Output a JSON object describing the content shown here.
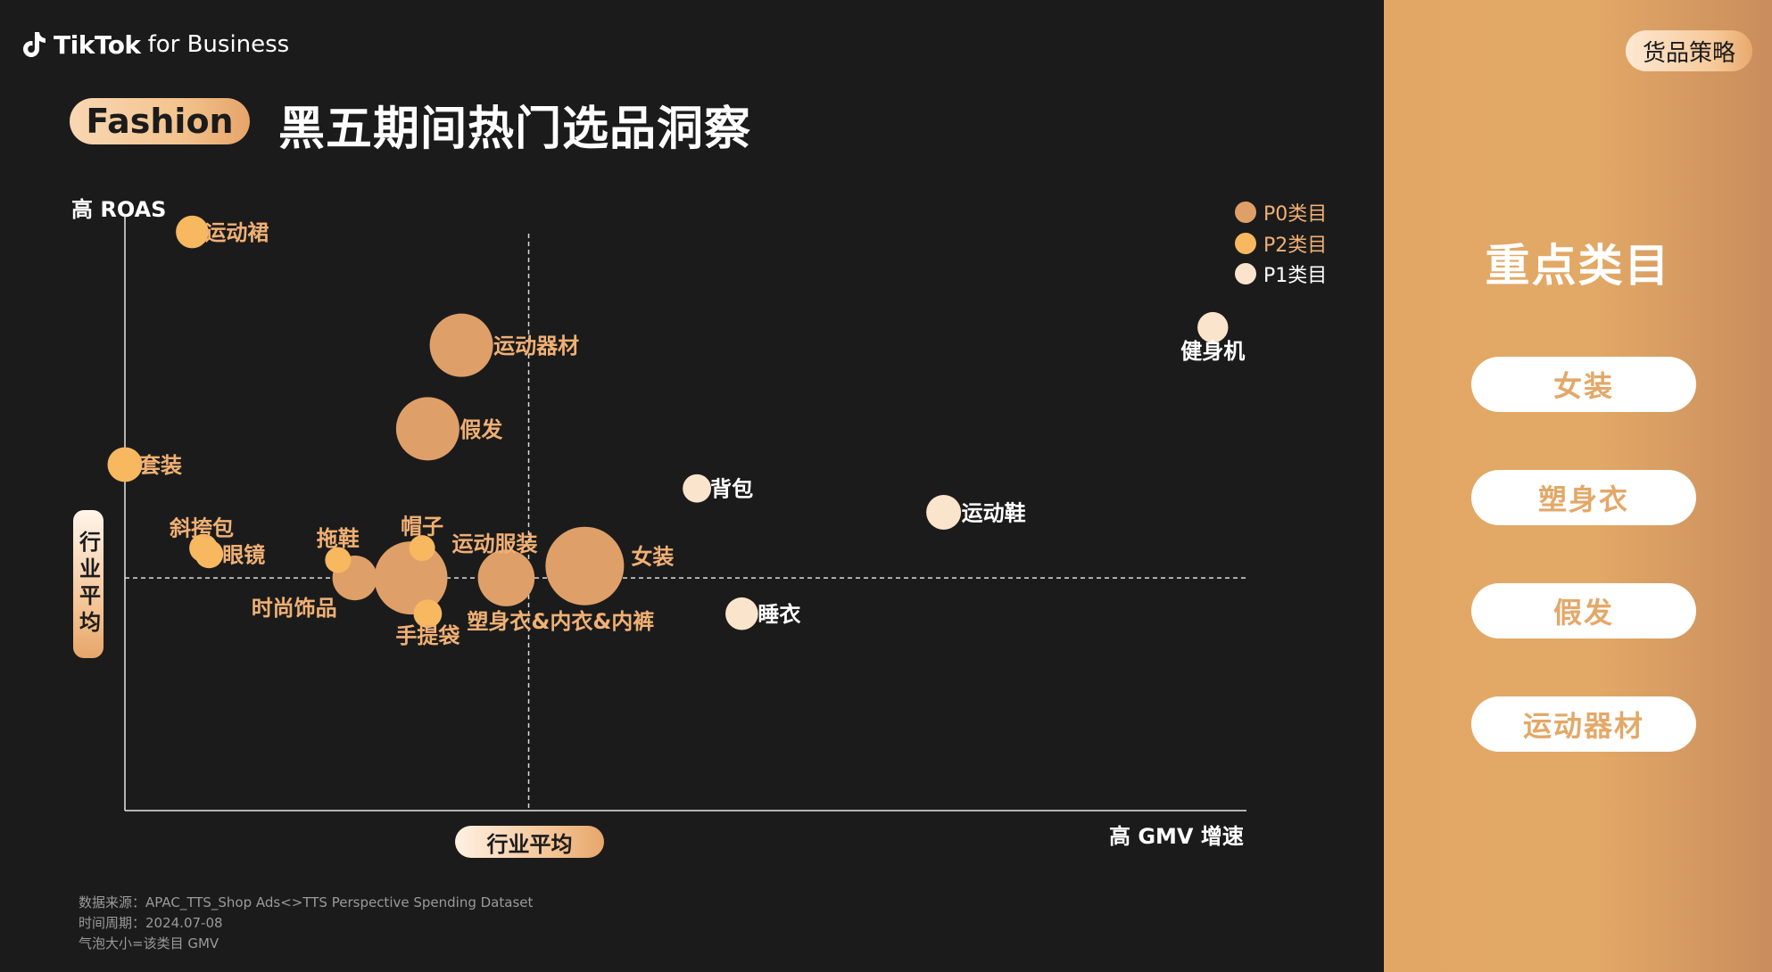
{
  "brand": {
    "name": "TikTok",
    "suffix": "for Business"
  },
  "header": {
    "category_tag": "Fashion",
    "title": "黑五期间热门选品洞察"
  },
  "axes": {
    "y_high_label": "高 ROAS",
    "x_high_label": "高 GMV 增速",
    "y_avg_label": "行业平均",
    "x_avg_label": "行业平均"
  },
  "footnotes": [
    "数据来源：APAC_TTS_Shop Ads<>TTS Perspective Spending Dataset",
    "时间周期：2024.07-08",
    "气泡大小=该类目 GMV"
  ],
  "side": {
    "tag": "货品策略",
    "title": "重点类目",
    "items": [
      "女装",
      "塑身衣",
      "假发",
      "运动器材"
    ]
  },
  "colors": {
    "P0": "#df9f68",
    "P2": "#f7b860",
    "P1": "#fbe4cc",
    "label_orange": "#f0b074",
    "accent": "#e3a765"
  },
  "chart_data": {
    "type": "scatter",
    "subtype": "bubble",
    "xlabel": "高 GMV 增速",
    "ylabel": "高 ROAS",
    "xlim": [
      0,
      100
    ],
    "ylim": [
      0,
      100
    ],
    "industry_average": {
      "x": 36,
      "y": 39
    },
    "grid": false,
    "legend": {
      "position": "top-right",
      "entries": [
        {
          "key": "P0",
          "label": "P0类目"
        },
        {
          "key": "P2",
          "label": "P2类目"
        },
        {
          "key": "P1",
          "label": "P1类目"
        }
      ]
    },
    "points": [
      {
        "label": "运动裙",
        "x": 6,
        "y": 97,
        "size": 8,
        "cat": "P2"
      },
      {
        "label": "运动器材",
        "x": 30,
        "y": 78,
        "size": 30,
        "cat": "P0"
      },
      {
        "label": "假发",
        "x": 27,
        "y": 64,
        "size": 30,
        "cat": "P0"
      },
      {
        "label": "套装",
        "x": 0,
        "y": 58,
        "size": 9,
        "cat": "P2"
      },
      {
        "label": "背包",
        "x": 51,
        "y": 54,
        "size": 6,
        "cat": "P1"
      },
      {
        "label": "运动鞋",
        "x": 73,
        "y": 50,
        "size": 9,
        "cat": "P1"
      },
      {
        "label": "健身机",
        "x": 97,
        "y": 81,
        "size": 7,
        "cat": "P1"
      },
      {
        "label": "斜挎包",
        "x": 7,
        "y": 44,
        "size": 6,
        "cat": "P2"
      },
      {
        "label": "眼镜",
        "x": 7.5,
        "y": 43,
        "size": 6,
        "cat": "P2"
      },
      {
        "label": "拖鞋",
        "x": 19,
        "y": 42,
        "size": 5,
        "cat": "P2"
      },
      {
        "label": "帽子",
        "x": 26.5,
        "y": 44,
        "size": 5,
        "cat": "P2"
      },
      {
        "label": "时尚饰品",
        "x": 20.5,
        "y": 39,
        "size": 15,
        "cat": "P0"
      },
      {
        "label": "运动服装",
        "x": 25.5,
        "y": 39,
        "size": 40,
        "cat": "P0"
      },
      {
        "label": "塑身衣&内衣&内裤",
        "x": 34,
        "y": 39,
        "size": 24,
        "cat": "P0"
      },
      {
        "label": "女装",
        "x": 41,
        "y": 41,
        "size": 46,
        "cat": "P0"
      },
      {
        "label": "手提袋",
        "x": 27,
        "y": 33,
        "size": 6,
        "cat": "P2"
      },
      {
        "label": "睡衣",
        "x": 55,
        "y": 33,
        "size": 8,
        "cat": "P1"
      }
    ]
  }
}
